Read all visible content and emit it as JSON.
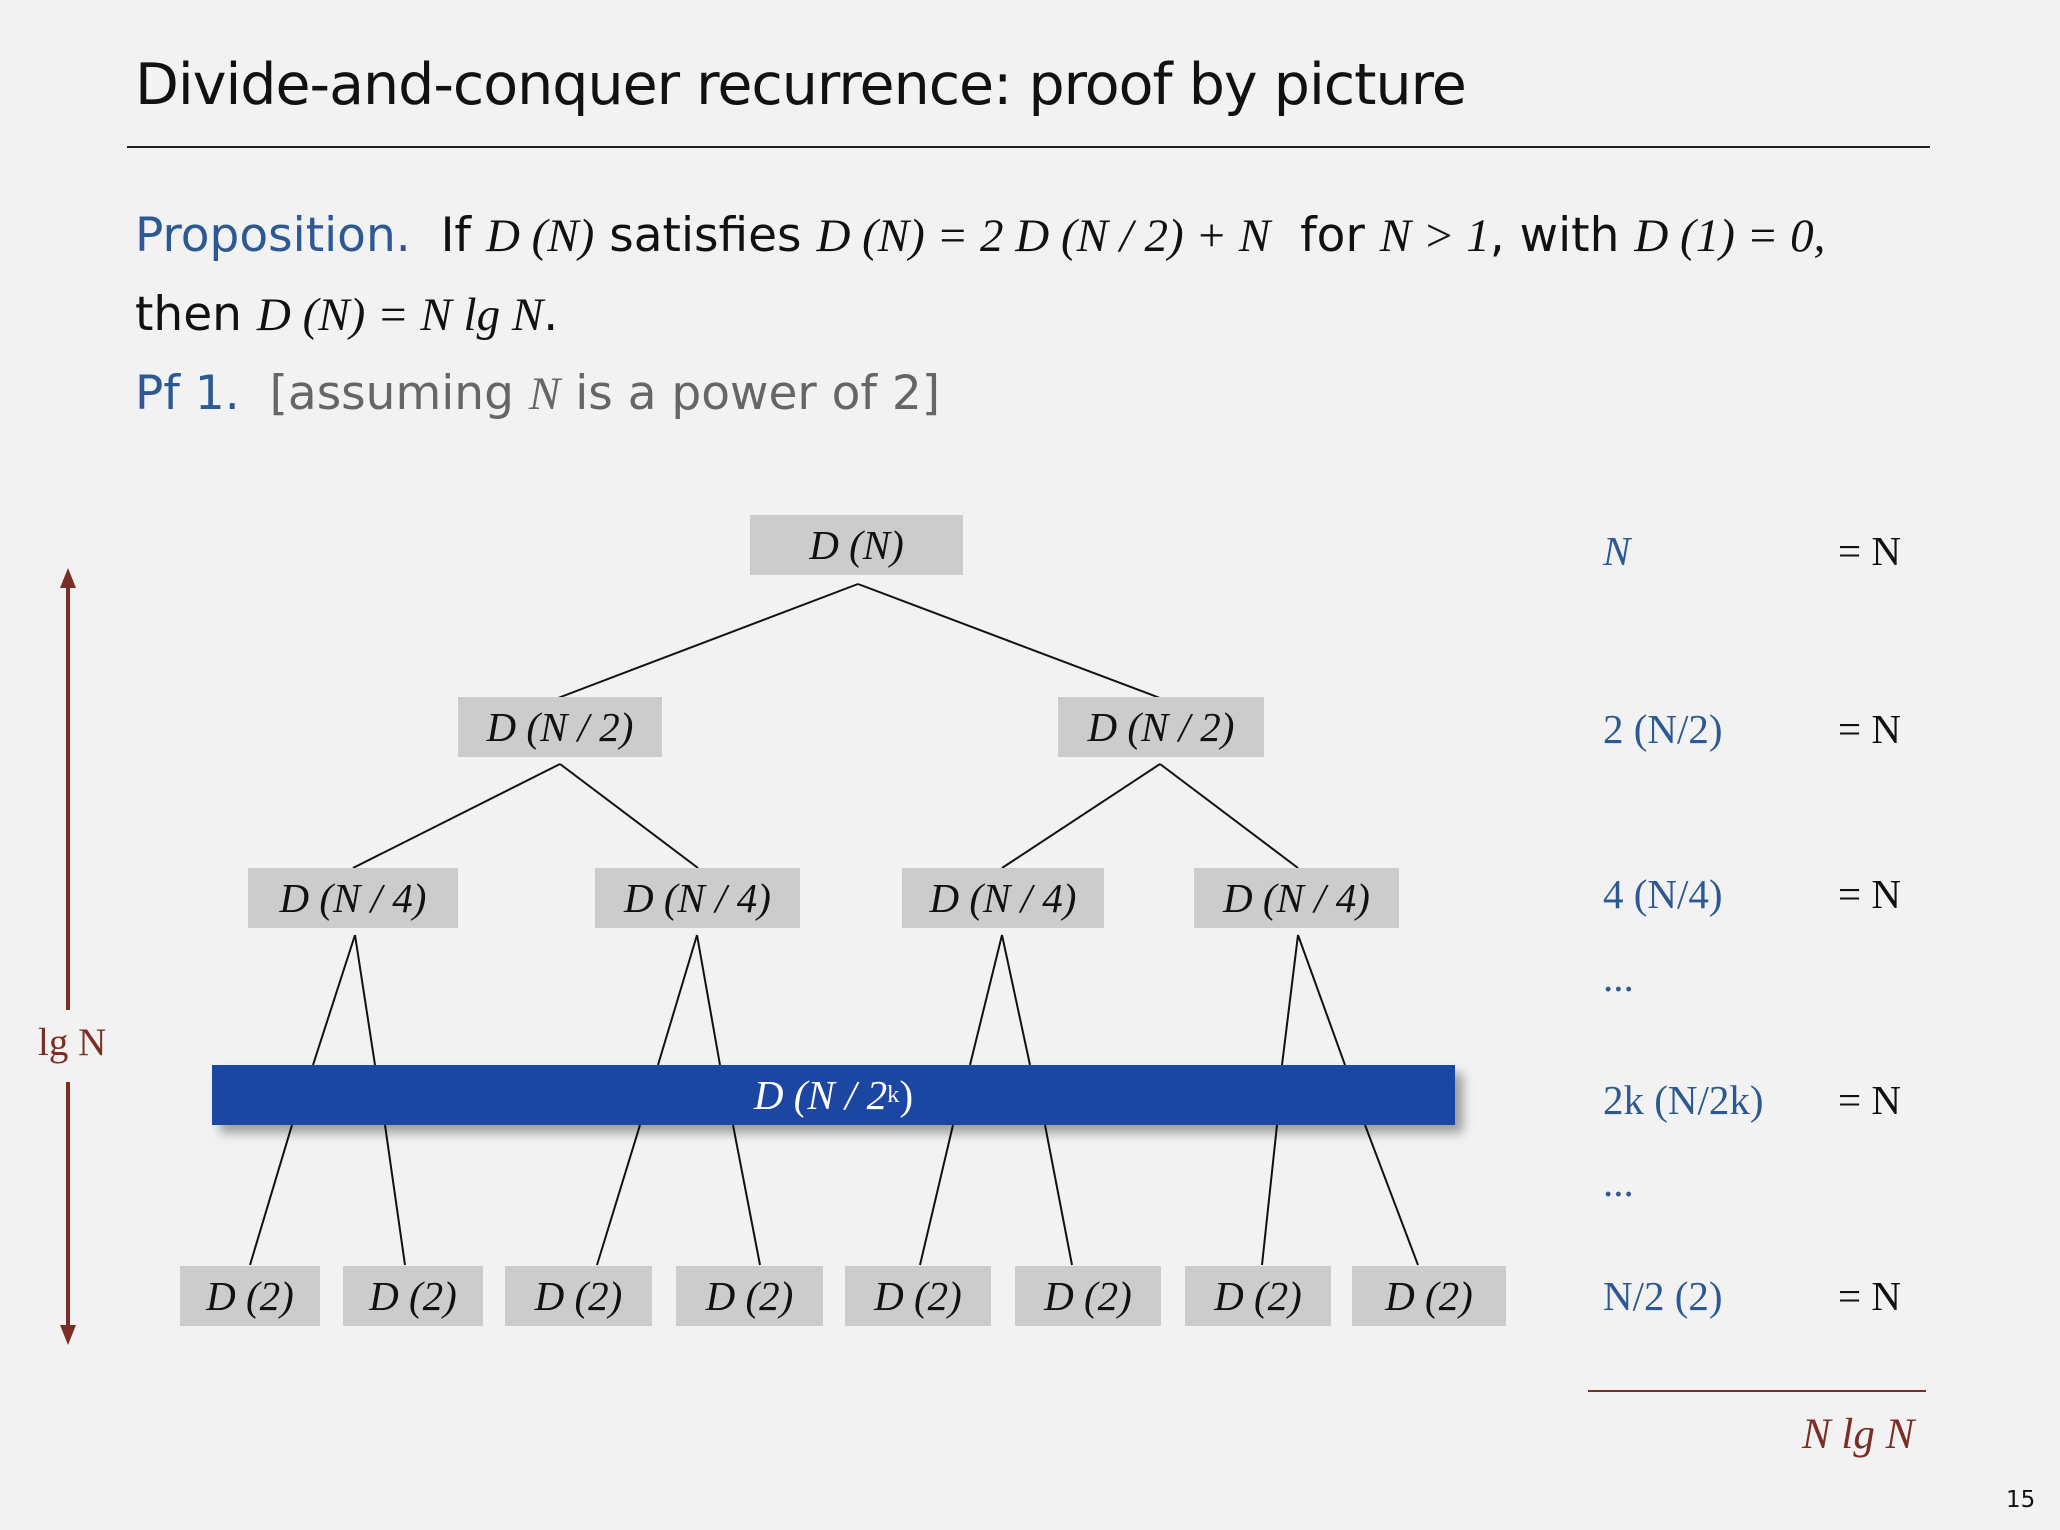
{
  "slide": {
    "title": "Divide-and-conquer recurrence:  proof by picture",
    "page_number": "15"
  },
  "proposition": {
    "label": "Proposition.",
    "if": "If",
    "dn": "D (N)",
    "satisfies": "satisfies",
    "recurrence": "D (N) = 2 D (N / 2) + N",
    "for": "for",
    "condition": "N > 1",
    "with": ", with",
    "base": "D (1) = 0,",
    "then": "then",
    "result": "D (N) = N lg N",
    "period": "."
  },
  "proof": {
    "label": "Pf 1.",
    "bracket_open": "[assuming",
    "var": "N",
    "bracket_rest": "is a power of 2]"
  },
  "tree": {
    "root": "D (N)",
    "level1": [
      "D (N / 2)",
      "D (N / 2)"
    ],
    "level2": [
      "D (N / 4)",
      "D (N / 4)",
      "D (N / 4)",
      "D (N / 4)"
    ],
    "band_prefix": "D (N / 2",
    "band_sup": "k",
    "band_suffix": ")",
    "leaves": [
      "D (2)",
      "D (2)",
      "D (2)",
      "D (2)",
      "D (2)",
      "D (2)",
      "D (2)",
      "D (2)"
    ]
  },
  "height_label": "lg N",
  "rows": [
    {
      "left": "N",
      "right": "= N"
    },
    {
      "left": "2 (N/2)",
      "right": "= N"
    },
    {
      "left": "4 (N/4)",
      "right": "= N"
    },
    {
      "left": "...",
      "right": ""
    },
    {
      "left": "2k (N/2k)",
      "right": "= N"
    },
    {
      "left": "...",
      "right": ""
    },
    {
      "left": "N/2 (2)",
      "right": "= N"
    }
  ],
  "total": "N lg N",
  "colors": {
    "accent_blue": "#2c5993",
    "band_blue": "#1b47a3",
    "brown": "#7a2e24",
    "node_gray": "#cccccc",
    "background": "#f2f2f2"
  }
}
